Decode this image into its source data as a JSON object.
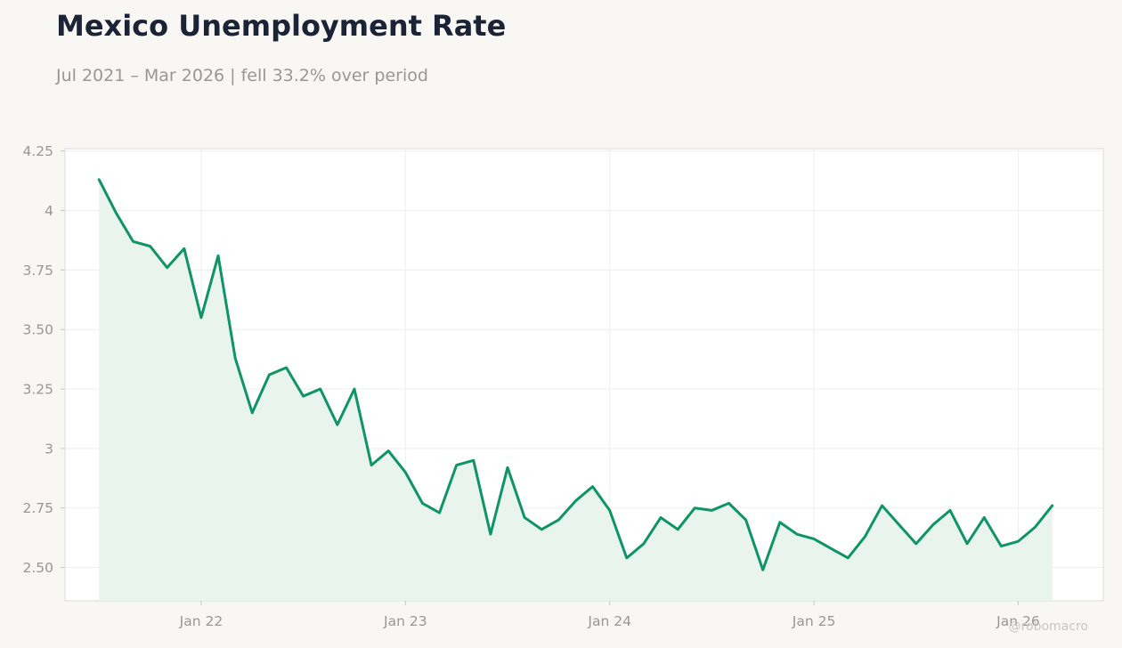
{
  "header": {
    "title": "Mexico Unemployment Rate",
    "subtitle": "Jul 2021 – Mar 2026 | fell 33.2% over period"
  },
  "watermark": "@robomacro",
  "colors": {
    "background": "#f8f7f4",
    "plot_background": "#ffffff",
    "line": "#0e9467",
    "area": "#e9f4ef",
    "title": "#1b2436",
    "muted_text": "#9a9791",
    "grid": "#eeeeee"
  },
  "chart_data": {
    "type": "area",
    "title": "Mexico Unemployment Rate",
    "subtitle": "Jul 2021 – Mar 2026 | fell 33.2% over period",
    "xlabel": "",
    "ylabel": "",
    "x_start": "2021-07",
    "x_end": "2026-03",
    "frequency": "monthly",
    "xlim": [
      "2021-05",
      "2026-06"
    ],
    "ylim": [
      2.36,
      4.26
    ],
    "grid": true,
    "legend": "none",
    "y_ticks": [
      2.5,
      2.75,
      3,
      3.25,
      3.5,
      3.75,
      4,
      4.25
    ],
    "y_tick_labels": [
      "2.50",
      "2.75",
      "3",
      "3.25",
      "3.50",
      "3.75",
      "4",
      "4.25"
    ],
    "x_ticks": [
      "2022-01",
      "2023-01",
      "2024-01",
      "2025-01",
      "2026-01"
    ],
    "x_tick_labels": [
      "Jan 22",
      "Jan 23",
      "Jan 24",
      "Jan 25",
      "Jan 26"
    ],
    "series": [
      {
        "name": "",
        "values": [
          4.13,
          3.99,
          3.87,
          3.85,
          3.76,
          3.84,
          3.55,
          3.81,
          3.38,
          3.15,
          3.31,
          3.34,
          3.22,
          3.25,
          3.1,
          3.25,
          2.93,
          2.99,
          2.9,
          2.77,
          2.73,
          2.93,
          2.95,
          2.64,
          2.92,
          2.71,
          2.66,
          2.7,
          2.78,
          2.84,
          2.74,
          2.54,
          2.6,
          2.71,
          2.66,
          2.75,
          2.74,
          2.77,
          2.7,
          2.49,
          2.69,
          2.64,
          2.62,
          2.58,
          2.54,
          2.63,
          2.76,
          2.68,
          2.6,
          2.68,
          2.74,
          2.6,
          2.71,
          2.59,
          2.61,
          2.67,
          2.76
        ]
      }
    ]
  }
}
